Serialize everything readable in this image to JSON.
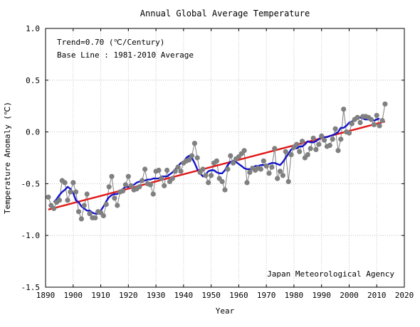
{
  "chart_data": {
    "type": "line",
    "title": "Annual Global Average Temperature",
    "xlabel": "Year",
    "ylabel": "Temperature Anomaly (℃)",
    "xlim": [
      1890,
      2020
    ],
    "ylim": [
      -1.5,
      1.0
    ],
    "x_ticks": [
      1890,
      1900,
      1910,
      1920,
      1930,
      1940,
      1950,
      1960,
      1970,
      1980,
      1990,
      2000,
      2010,
      2020
    ],
    "x_tick_labels": [
      "1890",
      "1900",
      "1910",
      "1920",
      "1930",
      "1940",
      "1950",
      "1960",
      "1970",
      "1980",
      "1990",
      "2000",
      "2010",
      "2020"
    ],
    "y_ticks": [
      1.0,
      0.5,
      0.0,
      -0.5,
      -1.0,
      -1.5
    ],
    "y_tick_labels": [
      "1.0",
      "0.5",
      "0.0",
      "-0.5",
      "-1.0",
      "-1.5"
    ],
    "grid": true,
    "annotations": {
      "trend": "Trend=0.70 (℃/Century)",
      "baseline": "Base Line : 1981-2010 Average",
      "source": "Japan Meteorological Agency"
    },
    "colors": {
      "annual": "#808080",
      "moving_average": "#1414c8",
      "trend": "#e01818"
    },
    "series": [
      {
        "key": "annual",
        "style": "gray-points-with-line",
        "x": [
          1891,
          1892,
          1893,
          1894,
          1895,
          1896,
          1897,
          1898,
          1899,
          1900,
          1901,
          1902,
          1903,
          1904,
          1905,
          1906,
          1907,
          1908,
          1909,
          1910,
          1911,
          1912,
          1913,
          1914,
          1915,
          1916,
          1917,
          1918,
          1919,
          1920,
          1921,
          1922,
          1923,
          1924,
          1925,
          1926,
          1927,
          1928,
          1929,
          1930,
          1931,
          1932,
          1933,
          1934,
          1935,
          1936,
          1937,
          1938,
          1939,
          1940,
          1941,
          1942,
          1943,
          1944,
          1945,
          1946,
          1947,
          1948,
          1949,
          1950,
          1951,
          1952,
          1953,
          1954,
          1955,
          1956,
          1957,
          1958,
          1959,
          1960,
          1961,
          1962,
          1963,
          1964,
          1965,
          1966,
          1967,
          1968,
          1969,
          1970,
          1971,
          1972,
          1973,
          1974,
          1975,
          1976,
          1977,
          1978,
          1979,
          1980,
          1981,
          1982,
          1983,
          1984,
          1985,
          1986,
          1987,
          1988,
          1989,
          1990,
          1991,
          1992,
          1993,
          1994,
          1995,
          1996,
          1997,
          1998,
          1999,
          2000,
          2001,
          2002,
          2003,
          2004,
          2005,
          2006,
          2007,
          2008,
          2009,
          2010,
          2011,
          2012,
          2013
        ],
        "y": [
          -0.63,
          -0.71,
          -0.74,
          -0.68,
          -0.66,
          -0.47,
          -0.49,
          -0.66,
          -0.58,
          -0.49,
          -0.58,
          -0.77,
          -0.84,
          -0.71,
          -0.6,
          -0.79,
          -0.83,
          -0.83,
          -0.77,
          -0.78,
          -0.81,
          -0.7,
          -0.53,
          -0.43,
          -0.64,
          -0.71,
          -0.58,
          -0.57,
          -0.51,
          -0.43,
          -0.52,
          -0.56,
          -0.55,
          -0.53,
          -0.47,
          -0.36,
          -0.5,
          -0.51,
          -0.6,
          -0.38,
          -0.37,
          -0.45,
          -0.52,
          -0.37,
          -0.48,
          -0.45,
          -0.38,
          -0.34,
          -0.38,
          -0.3,
          -0.28,
          -0.27,
          -0.23,
          -0.11,
          -0.25,
          -0.39,
          -0.36,
          -0.42,
          -0.49,
          -0.42,
          -0.3,
          -0.28,
          -0.45,
          -0.48,
          -0.56,
          -0.36,
          -0.23,
          -0.3,
          -0.26,
          -0.24,
          -0.21,
          -0.18,
          -0.49,
          -0.39,
          -0.35,
          -0.37,
          -0.35,
          -0.36,
          -0.28,
          -0.33,
          -0.4,
          -0.34,
          -0.16,
          -0.45,
          -0.38,
          -0.42,
          -0.19,
          -0.48,
          -0.22,
          -0.15,
          -0.12,
          -0.19,
          -0.09,
          -0.25,
          -0.22,
          -0.16,
          -0.06,
          -0.17,
          -0.12,
          -0.04,
          -0.08,
          -0.14,
          -0.13,
          -0.07,
          0.03,
          -0.18,
          -0.07,
          0.22,
          0.0,
          -0.01,
          0.08,
          0.12,
          0.14,
          0.09,
          0.15,
          0.15,
          0.14,
          0.12,
          0.07,
          0.16,
          0.06,
          0.11,
          0.27
        ]
      },
      {
        "key": "moving_average",
        "name": "",
        "style": "blue-line",
        "x": [
          1893,
          1894,
          1895,
          1896,
          1897,
          1898,
          1899,
          1900,
          1901,
          1902,
          1903,
          1904,
          1905,
          1906,
          1907,
          1908,
          1909,
          1910,
          1911,
          1912,
          1913,
          1914,
          1915,
          1916,
          1917,
          1918,
          1919,
          1920,
          1921,
          1922,
          1923,
          1924,
          1925,
          1926,
          1927,
          1928,
          1929,
          1930,
          1931,
          1932,
          1933,
          1934,
          1935,
          1936,
          1937,
          1938,
          1939,
          1940,
          1941,
          1942,
          1943,
          1944,
          1945,
          1946,
          1947,
          1948,
          1949,
          1950,
          1951,
          1952,
          1953,
          1954,
          1955,
          1956,
          1957,
          1958,
          1959,
          1960,
          1961,
          1962,
          1963,
          1964,
          1965,
          1966,
          1967,
          1968,
          1969,
          1970,
          1971,
          1972,
          1973,
          1974,
          1975,
          1976,
          1977,
          1978,
          1979,
          1980,
          1981,
          1982,
          1983,
          1984,
          1985,
          1986,
          1987,
          1988,
          1989,
          1990,
          1991,
          1992,
          1993,
          1994,
          1995,
          1996,
          1997,
          1998,
          1999,
          2000,
          2001,
          2002,
          2003,
          2004,
          2005,
          2006,
          2007,
          2008,
          2009,
          2010,
          2011
        ],
        "y": [
          -0.68,
          -0.65,
          -0.61,
          -0.58,
          -0.56,
          -0.53,
          -0.55,
          -0.59,
          -0.66,
          -0.68,
          -0.72,
          -0.74,
          -0.76,
          -0.76,
          -0.78,
          -0.79,
          -0.79,
          -0.76,
          -0.72,
          -0.67,
          -0.63,
          -0.61,
          -0.6,
          -0.6,
          -0.57,
          -0.55,
          -0.53,
          -0.53,
          -0.52,
          -0.51,
          -0.49,
          -0.48,
          -0.48,
          -0.47,
          -0.46,
          -0.46,
          -0.45,
          -0.45,
          -0.45,
          -0.43,
          -0.43,
          -0.43,
          -0.41,
          -0.39,
          -0.36,
          -0.33,
          -0.3,
          -0.29,
          -0.25,
          -0.23,
          -0.25,
          -0.3,
          -0.36,
          -0.4,
          -0.43,
          -0.41,
          -0.38,
          -0.37,
          -0.37,
          -0.39,
          -0.4,
          -0.4,
          -0.37,
          -0.32,
          -0.29,
          -0.28,
          -0.29,
          -0.31,
          -0.33,
          -0.35,
          -0.36,
          -0.36,
          -0.35,
          -0.33,
          -0.33,
          -0.32,
          -0.32,
          -0.32,
          -0.31,
          -0.3,
          -0.3,
          -0.31,
          -0.32,
          -0.29,
          -0.25,
          -0.21,
          -0.17,
          -0.15,
          -0.16,
          -0.14,
          -0.14,
          -0.12,
          -0.09,
          -0.1,
          -0.1,
          -0.09,
          -0.07,
          -0.05,
          -0.05,
          -0.05,
          -0.04,
          -0.03,
          -0.02,
          0.0,
          0.04,
          0.04,
          0.06,
          0.09,
          0.1,
          0.12,
          0.13,
          0.14,
          0.13,
          0.12,
          0.12,
          0.12,
          0.11,
          0.12,
          0.13
        ]
      },
      {
        "key": "trend",
        "name": "",
        "style": "red-line",
        "x": [
          1891,
          2013
        ],
        "y": [
          -0.75,
          0.1
        ]
      }
    ]
  }
}
